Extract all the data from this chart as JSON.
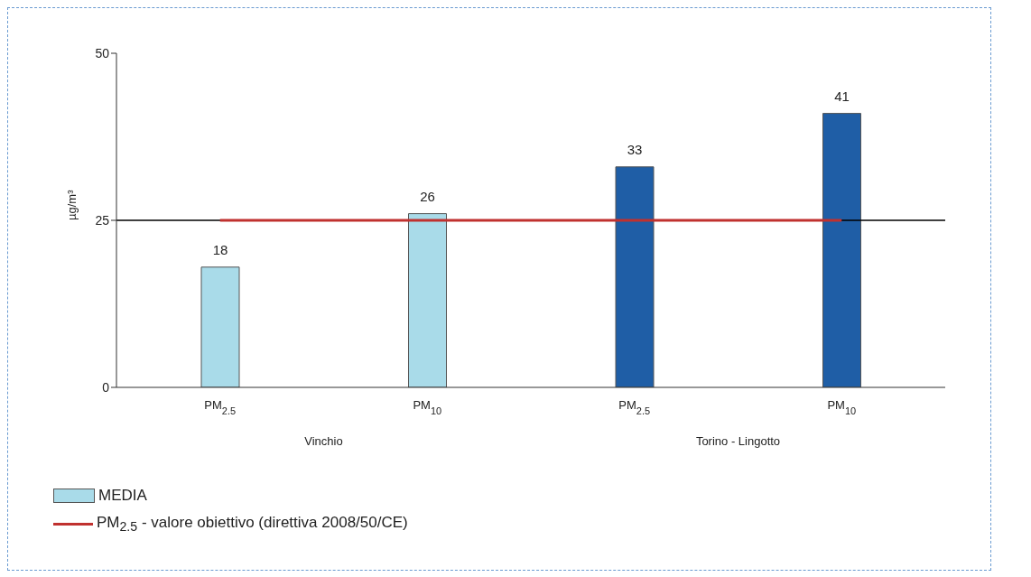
{
  "chart_data": {
    "type": "bar",
    "ylabel": "µg/m³",
    "categories": [
      "PM$_{2.5}$",
      "PM$_{10}$",
      "PM$_{2.5}$",
      "PM$_{10}$"
    ],
    "annotations": [
      "Vinchio",
      "Torino - Lingotto"
    ],
    "series": [
      {
        "name": "MEDIA",
        "colors": [
          "#a9dbe9",
          "#a9dbe9",
          "#1f5ea6",
          "#1f5ea6"
        ],
        "values": [
          18,
          26,
          33,
          41
        ],
        "value_labels": [
          "18",
          "26",
          "33",
          "41"
        ]
      },
      {
        "name": "PM$_{2.5}$ - valore obiettivo (direttiva 2008/50/CE)",
        "type": "line",
        "color": "#c0312f",
        "values": [
          25,
          25,
          25,
          25
        ],
        "marker": "none"
      }
    ],
    "ylim": [
      0,
      50
    ],
    "yticks": [
      0,
      25,
      50
    ],
    "ref_lines": [
      {
        "axis": "y",
        "value": 25,
        "color": "#000000"
      }
    ],
    "legend": "bottom left"
  }
}
